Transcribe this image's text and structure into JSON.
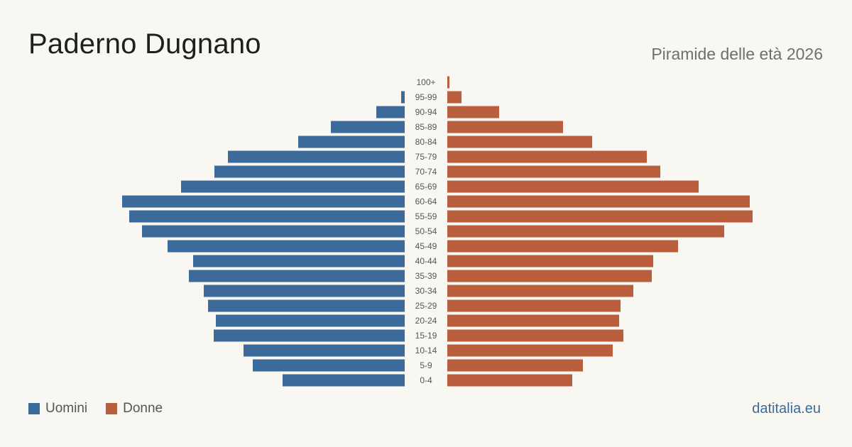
{
  "header": {
    "title": "Paderno Dugnano",
    "subtitle": "Piramide delle età 2026"
  },
  "legend": {
    "items": [
      {
        "label": "Uomini",
        "color": "#3b6a9b"
      },
      {
        "label": "Donne",
        "color": "#bb5e3d"
      }
    ]
  },
  "footer": {
    "brand": "datitalia.eu"
  },
  "chart_data": {
    "type": "bar",
    "orientation": "horizontal-population-pyramid",
    "categories": [
      "0-4",
      "5-9",
      "10-14",
      "15-19",
      "20-24",
      "25-29",
      "30-34",
      "35-39",
      "40-44",
      "45-49",
      "50-54",
      "55-59",
      "60-64",
      "65-69",
      "70-74",
      "75-79",
      "80-84",
      "85-89",
      "90-94",
      "95-99",
      "100+"
    ],
    "series": [
      {
        "name": "Uomini",
        "color": "#3b6a9b",
        "values": [
          172,
          214,
          227,
          269,
          266,
          277,
          283,
          304,
          298,
          334,
          370,
          388,
          398,
          315,
          268,
          249,
          150,
          104,
          40,
          5,
          0
        ]
      },
      {
        "name": "Donne",
        "color": "#bb5e3d",
        "values": [
          176,
          191,
          233,
          248,
          242,
          244,
          262,
          288,
          290,
          325,
          390,
          430,
          426,
          354,
          300,
          281,
          204,
          163,
          73,
          20,
          3
        ]
      }
    ],
    "value_max": 430,
    "grid": false
  }
}
